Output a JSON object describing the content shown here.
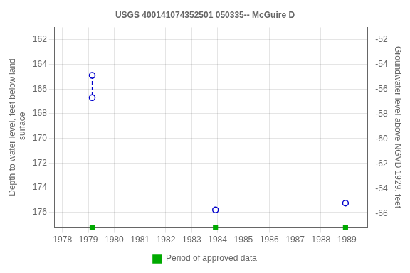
{
  "chart_data": {
    "type": "scatter",
    "title": "USGS 400141074352501 050335-- McGuire D",
    "y_label": "Depth to water level, feet below land\n surface",
    "y2_label": "Groundwater level above NGVD 1929, feet",
    "xlim": [
      1977.7,
      1989.8
    ],
    "xticks": [
      1978,
      1979,
      1980,
      1981,
      1982,
      1983,
      1984,
      1985,
      1986,
      1987,
      1988,
      1989
    ],
    "ylim": [
      177.2,
      161.0
    ],
    "yticks": [
      162,
      164,
      166,
      168,
      170,
      172,
      174,
      176
    ],
    "y2lim": [
      -67.08,
      -51.0
    ],
    "y2ticks": [
      -52,
      -54,
      -56,
      -58,
      -60,
      -62,
      -64,
      -66
    ],
    "grid": true,
    "legend": "bottom",
    "series": [
      {
        "type": "line",
        "line_style": "dashed",
        "marker": "none",
        "color": "#0000cc",
        "x": [
          1979.15,
          1979.15
        ],
        "values": [
          164.9,
          166.7
        ]
      },
      {
        "type": "scatter",
        "marker": "circle",
        "color": "#0000cc",
        "x": [
          1979.15,
          1979.15,
          1983.92,
          1988.95
        ],
        "values": [
          164.9,
          166.7,
          175.8,
          175.25
        ]
      },
      {
        "name": "Period of approved data",
        "type": "scatter",
        "marker": "square",
        "color": "#00aa00",
        "x": [
          1979.15,
          1983.92,
          1988.95
        ]
      }
    ]
  }
}
